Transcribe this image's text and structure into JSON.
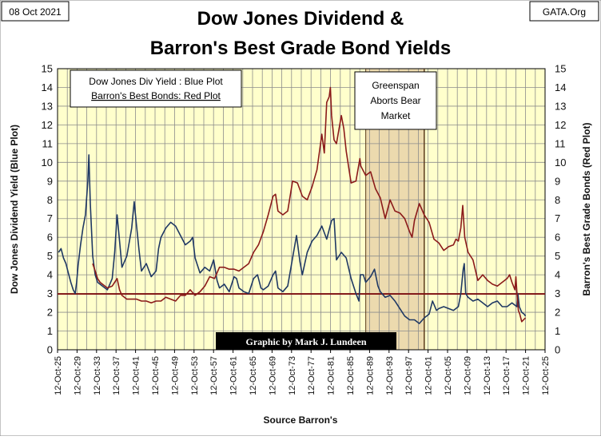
{
  "chart_data": {
    "type": "line",
    "title": [
      "Dow Jones Dividend &",
      "Barron's Best Grade Bond Yields"
    ],
    "date_label": "08 Oct 2021",
    "source_tag": "GATA.Org",
    "ylabel_left": "Dow Jones  Dividend  Yield  (Blue Plot)",
    "ylabel_right": "Barron's  Best  Grade  Bonds  (Red Plot)",
    "xlabel": "Source Barron's",
    "ylim": [
      0,
      15
    ],
    "yticks": [
      "0",
      "1",
      "2",
      "3",
      "4",
      "5",
      "6",
      "7",
      "8",
      "9",
      "10",
      "11",
      "12",
      "13",
      "14",
      "15"
    ],
    "x_range": [
      1925.78,
      2025.78
    ],
    "xticks": [
      {
        "year": 1925.78,
        "label": "12-Oct-25"
      },
      {
        "year": 1929.78,
        "label": "12-Oct-29"
      },
      {
        "year": 1933.78,
        "label": "12-Oct-33"
      },
      {
        "year": 1937.78,
        "label": "12-Oct-37"
      },
      {
        "year": 1941.78,
        "label": "12-Oct-41"
      },
      {
        "year": 1945.78,
        "label": "12-Oct-45"
      },
      {
        "year": 1949.78,
        "label": "12-Oct-49"
      },
      {
        "year": 1953.78,
        "label": "12-Oct-53"
      },
      {
        "year": 1957.78,
        "label": "12-Oct-57"
      },
      {
        "year": 1961.78,
        "label": "12-Oct-61"
      },
      {
        "year": 1965.78,
        "label": "12-Oct-65"
      },
      {
        "year": 1969.78,
        "label": "12-Oct-69"
      },
      {
        "year": 1973.78,
        "label": "12-Oct-73"
      },
      {
        "year": 1977.78,
        "label": "12-Oct-77"
      },
      {
        "year": 1981.78,
        "label": "12-Oct-81"
      },
      {
        "year": 1985.78,
        "label": "12-Oct-85"
      },
      {
        "year": 1989.78,
        "label": "12-Oct-89"
      },
      {
        "year": 1993.78,
        "label": "12-Oct-93"
      },
      {
        "year": 1997.78,
        "label": "12-Oct-97"
      },
      {
        "year": 2001.78,
        "label": "12-Oct-01"
      },
      {
        "year": 2005.78,
        "label": "12-Oct-05"
      },
      {
        "year": 2009.78,
        "label": "12-Oct-09"
      },
      {
        "year": 2013.78,
        "label": "12-Oct-13"
      },
      {
        "year": 2017.78,
        "label": "12-Oct-17"
      },
      {
        "year": 2021.78,
        "label": "12-Oct-21"
      },
      {
        "year": 2025.78,
        "label": "12-Oct-25"
      }
    ],
    "grid": true,
    "legend": {
      "position": "top-left",
      "line1": "Dow Jones Div Yield : Blue Plot",
      "line2": "Barron's  Best Bonds: Red Plot"
    },
    "annotation": {
      "text": [
        "Greenspan",
        "Aborts Bear",
        "Market"
      ],
      "shaded_span": [
        1989.0,
        2001.0
      ]
    },
    "reference_line": {
      "value": 2.98,
      "color": "#7f1010"
    },
    "credit": "Graphic by Mark J. Lundeen",
    "series": [
      {
        "name": "Dow Jones Div Yield",
        "color": "#1f3864",
        "x": [
          1926.0,
          1926.5,
          1927.0,
          1927.5,
          1928.0,
          1928.5,
          1929.0,
          1929.4,
          1929.7,
          1930.0,
          1930.5,
          1931.0,
          1931.5,
          1932.0,
          1932.2,
          1932.5,
          1933.0,
          1933.5,
          1934.0,
          1935.0,
          1936.0,
          1936.5,
          1937.0,
          1937.5,
          1938.0,
          1938.5,
          1939.0,
          1940.0,
          1941.0,
          1941.5,
          1942.0,
          1942.5,
          1943.0,
          1944.0,
          1945.0,
          1946.0,
          1946.5,
          1947.0,
          1948.0,
          1949.0,
          1950.0,
          1951.0,
          1952.0,
          1953.0,
          1953.5,
          1954.0,
          1955.0,
          1956.0,
          1957.0,
          1957.8,
          1958.5,
          1959.0,
          1960.0,
          1961.0,
          1962.0,
          1962.5,
          1963.0,
          1964.0,
          1965.0,
          1966.0,
          1966.8,
          1967.5,
          1968.0,
          1969.0,
          1970.0,
          1970.5,
          1971.0,
          1972.0,
          1973.0,
          1974.0,
          1974.8,
          1975.5,
          1976.0,
          1977.0,
          1978.0,
          1979.0,
          1980.0,
          1981.0,
          1982.0,
          1982.5,
          1983.0,
          1984.0,
          1985.0,
          1986.0,
          1987.0,
          1987.6,
          1987.9,
          1988.5,
          1989.0,
          1990.0,
          1990.8,
          1991.5,
          1992.0,
          1993.0,
          1994.0,
          1995.0,
          1996.0,
          1997.0,
          1998.0,
          1999.0,
          2000.0,
          2001.0,
          2002.0,
          2002.7,
          2003.5,
          2004.0,
          2005.0,
          2006.0,
          2007.0,
          2008.0,
          2008.5,
          2009.0,
          2009.2,
          2009.5,
          2010.0,
          2011.0,
          2012.0,
          2013.0,
          2014.0,
          2015.0,
          2016.0,
          2017.0,
          2018.0,
          2019.0,
          2020.0,
          2020.2,
          2020.5,
          2021.0,
          2021.5,
          2021.77
        ],
        "values": [
          5.2,
          5.4,
          4.9,
          4.6,
          4.1,
          3.6,
          3.2,
          3.0,
          3.6,
          4.5,
          5.6,
          6.5,
          7.2,
          9.0,
          10.4,
          7.8,
          5.0,
          4.0,
          3.6,
          3.4,
          3.2,
          3.5,
          3.8,
          5.2,
          7.2,
          5.8,
          4.4,
          5.0,
          6.5,
          7.9,
          6.6,
          5.3,
          4.2,
          4.6,
          3.9,
          4.2,
          5.4,
          6.0,
          6.5,
          6.8,
          6.6,
          6.1,
          5.6,
          5.8,
          6.0,
          4.9,
          4.1,
          4.4,
          4.2,
          4.8,
          3.7,
          3.3,
          3.5,
          3.1,
          3.9,
          3.8,
          3.3,
          3.1,
          3.0,
          3.8,
          4.0,
          3.3,
          3.2,
          3.4,
          4.0,
          4.2,
          3.3,
          3.1,
          3.4,
          4.9,
          6.1,
          4.7,
          4.0,
          5.2,
          5.8,
          6.1,
          6.6,
          5.9,
          6.9,
          7.0,
          4.8,
          5.2,
          4.9,
          3.8,
          3.0,
          2.6,
          4.0,
          4.0,
          3.6,
          3.9,
          4.3,
          3.4,
          3.1,
          2.8,
          2.9,
          2.6,
          2.2,
          1.8,
          1.6,
          1.6,
          1.4,
          1.7,
          1.9,
          2.6,
          2.1,
          2.2,
          2.3,
          2.2,
          2.1,
          2.3,
          3.0,
          4.3,
          4.6,
          3.0,
          2.8,
          2.6,
          2.7,
          2.5,
          2.3,
          2.5,
          2.6,
          2.3,
          2.3,
          2.5,
          2.3,
          3.0,
          2.3,
          2.0,
          1.9,
          1.8
        ]
      },
      {
        "name": "Barron's Best Grade Bonds",
        "color": "#8b1a1a",
        "x": [
          1933.0,
          1933.5,
          1934.0,
          1934.5,
          1935.0,
          1936.0,
          1937.0,
          1937.5,
          1938.0,
          1938.5,
          1939.0,
          1940.0,
          1941.0,
          1942.0,
          1943.0,
          1944.0,
          1945.0,
          1946.0,
          1947.0,
          1948.0,
          1949.0,
          1950.0,
          1951.0,
          1952.0,
          1953.0,
          1954.0,
          1955.0,
          1956.0,
          1957.0,
          1958.0,
          1959.0,
          1960.0,
          1961.0,
          1962.0,
          1963.0,
          1964.0,
          1965.0,
          1966.0,
          1967.0,
          1968.0,
          1969.0,
          1970.0,
          1970.5,
          1971.0,
          1972.0,
          1973.0,
          1974.0,
          1975.0,
          1976.0,
          1977.0,
          1978.0,
          1979.0,
          1980.0,
          1980.5,
          1981.0,
          1981.5,
          1981.75,
          1982.0,
          1982.5,
          1983.0,
          1984.0,
          1984.5,
          1985.0,
          1986.0,
          1987.0,
          1987.8,
          1988.0,
          1989.0,
          1990.0,
          1991.0,
          1992.0,
          1993.0,
          1994.0,
          1995.0,
          1996.0,
          1997.0,
          1998.0,
          1998.5,
          1999.0,
          2000.0,
          2001.0,
          2002.0,
          2003.0,
          2004.0,
          2005.0,
          2006.0,
          2007.0,
          2007.5,
          2008.0,
          2008.5,
          2008.9,
          2009.3,
          2010.0,
          2011.0,
          2012.0,
          2013.0,
          2014.0,
          2015.0,
          2016.0,
          2017.0,
          2018.0,
          2018.5,
          2019.0,
          2019.6,
          2019.8,
          2020.0,
          2020.3,
          2020.6,
          2021.0,
          2021.77
        ],
        "values": [
          4.6,
          4.2,
          3.8,
          3.6,
          3.5,
          3.3,
          3.4,
          3.6,
          3.8,
          3.2,
          2.9,
          2.7,
          2.7,
          2.7,
          2.6,
          2.6,
          2.5,
          2.6,
          2.6,
          2.8,
          2.7,
          2.6,
          2.9,
          2.9,
          3.2,
          2.9,
          3.1,
          3.4,
          3.9,
          3.8,
          4.4,
          4.4,
          4.3,
          4.3,
          4.2,
          4.4,
          4.6,
          5.2,
          5.6,
          6.3,
          7.2,
          8.2,
          8.3,
          7.4,
          7.2,
          7.4,
          9.0,
          8.9,
          8.2,
          8.0,
          8.7,
          9.6,
          11.5,
          10.5,
          13.2,
          13.5,
          14.0,
          12.5,
          11.2,
          11.0,
          12.5,
          11.8,
          10.6,
          8.9,
          9.0,
          10.2,
          9.8,
          9.3,
          9.5,
          8.6,
          8.1,
          7.0,
          8.0,
          7.4,
          7.3,
          7.0,
          6.3,
          6.0,
          6.9,
          7.8,
          7.2,
          6.8,
          5.9,
          5.7,
          5.3,
          5.5,
          5.6,
          5.9,
          5.8,
          6.5,
          7.7,
          6.0,
          5.2,
          4.8,
          3.7,
          4.0,
          3.7,
          3.5,
          3.4,
          3.6,
          3.8,
          4.0,
          3.6,
          3.2,
          3.9,
          3.1,
          2.1,
          1.9,
          1.5,
          1.7
        ]
      }
    ]
  }
}
